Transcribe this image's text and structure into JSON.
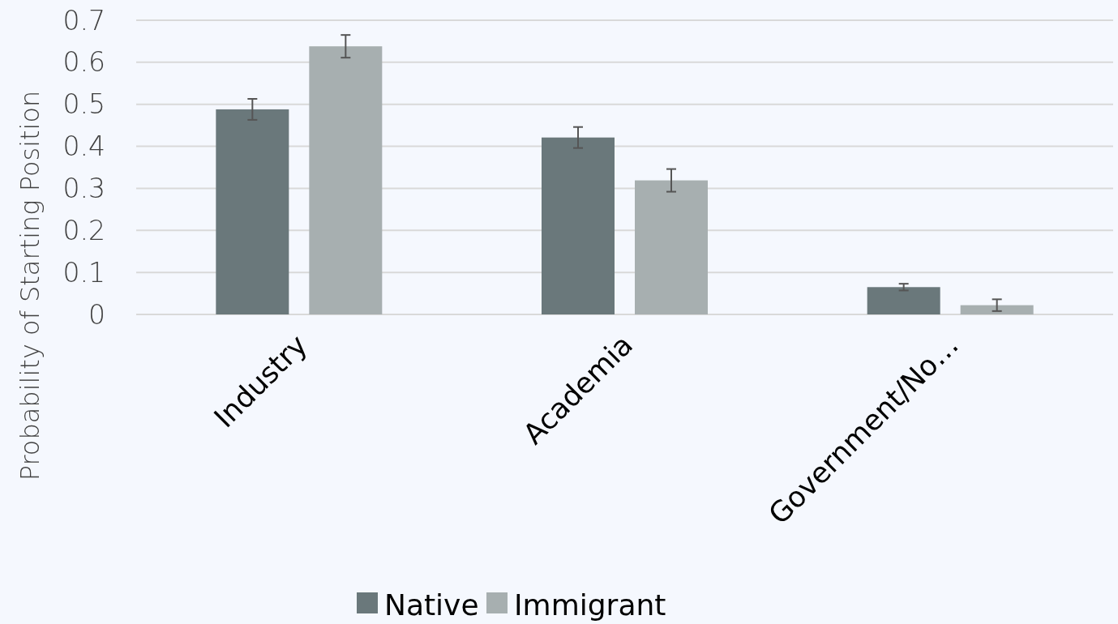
{
  "chart_data": {
    "type": "bar",
    "ylabel": "Probability of Starting Position",
    "categories": [
      "Industry",
      "Academia",
      "Government/No…"
    ],
    "series": [
      {
        "name": "Native",
        "color": "#6a787b",
        "values": [
          0.488,
          0.421,
          0.065
        ],
        "errors": [
          0.025,
          0.025,
          0.008
        ]
      },
      {
        "name": "Immigrant",
        "color": "#a7afb0",
        "values": [
          0.638,
          0.319,
          0.022
        ],
        "errors": [
          0.027,
          0.027,
          0.014
        ]
      }
    ],
    "ylim": [
      0,
      0.7
    ],
    "yticks": [
      0,
      0.1,
      0.2,
      0.3,
      0.4,
      0.5,
      0.6,
      0.7
    ],
    "grid": "y",
    "legend": "bottom"
  }
}
